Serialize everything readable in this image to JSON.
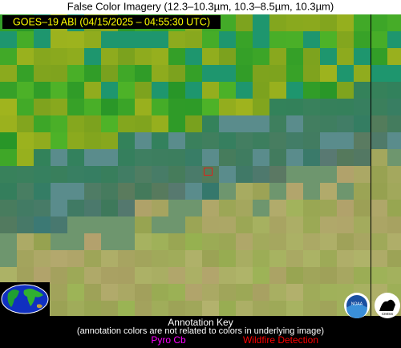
{
  "header": {
    "title": "False Color Imagery (12.3–10.3µm, 10.3–8.5µm, 10.3µm)"
  },
  "image": {
    "timestamp": "GOES–19 ABI (04/15/2025 – 04:55:30 UTC)"
  },
  "key": {
    "title": "Annotation Key",
    "subtitle": "(annotation colors are not related to colors in underlying image)",
    "items": [
      {
        "label": "Pyro Cb",
        "color": "#ff00ff"
      },
      {
        "label": "Wildfire Detection",
        "color": "#ff0000"
      }
    ]
  },
  "logos": {
    "noaa": "NOAA",
    "cimss": "CIMSS"
  }
}
